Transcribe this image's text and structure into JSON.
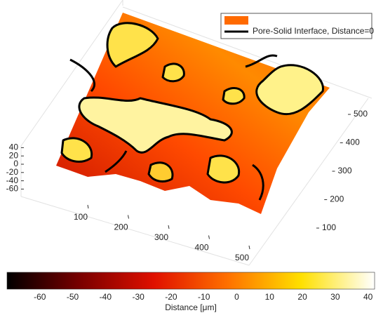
{
  "chart_data": {
    "type": "surface",
    "xticks": [
      100,
      200,
      300,
      400,
      500
    ],
    "yticks": [
      100,
      200,
      300,
      400,
      500
    ],
    "zticks": [
      40,
      20,
      0,
      -20,
      -40,
      -60
    ],
    "legend": [
      {
        "color": "#ff6a00"
      },
      {
        "name": "Pore-Solid Interface, Distance=0",
        "color": "#000000"
      }
    ],
    "colorbar": {
      "label": "Distance [μm]",
      "clim": [
        -70,
        42
      ],
      "ticks": [
        -60,
        -50,
        -40,
        -30,
        -20,
        -10,
        0,
        10,
        20,
        30,
        40
      ],
      "colormap": [
        "#000000",
        "#7a0000",
        "#e01000",
        "#ff7000",
        "#ffe000",
        "#ffffff"
      ]
    }
  }
}
